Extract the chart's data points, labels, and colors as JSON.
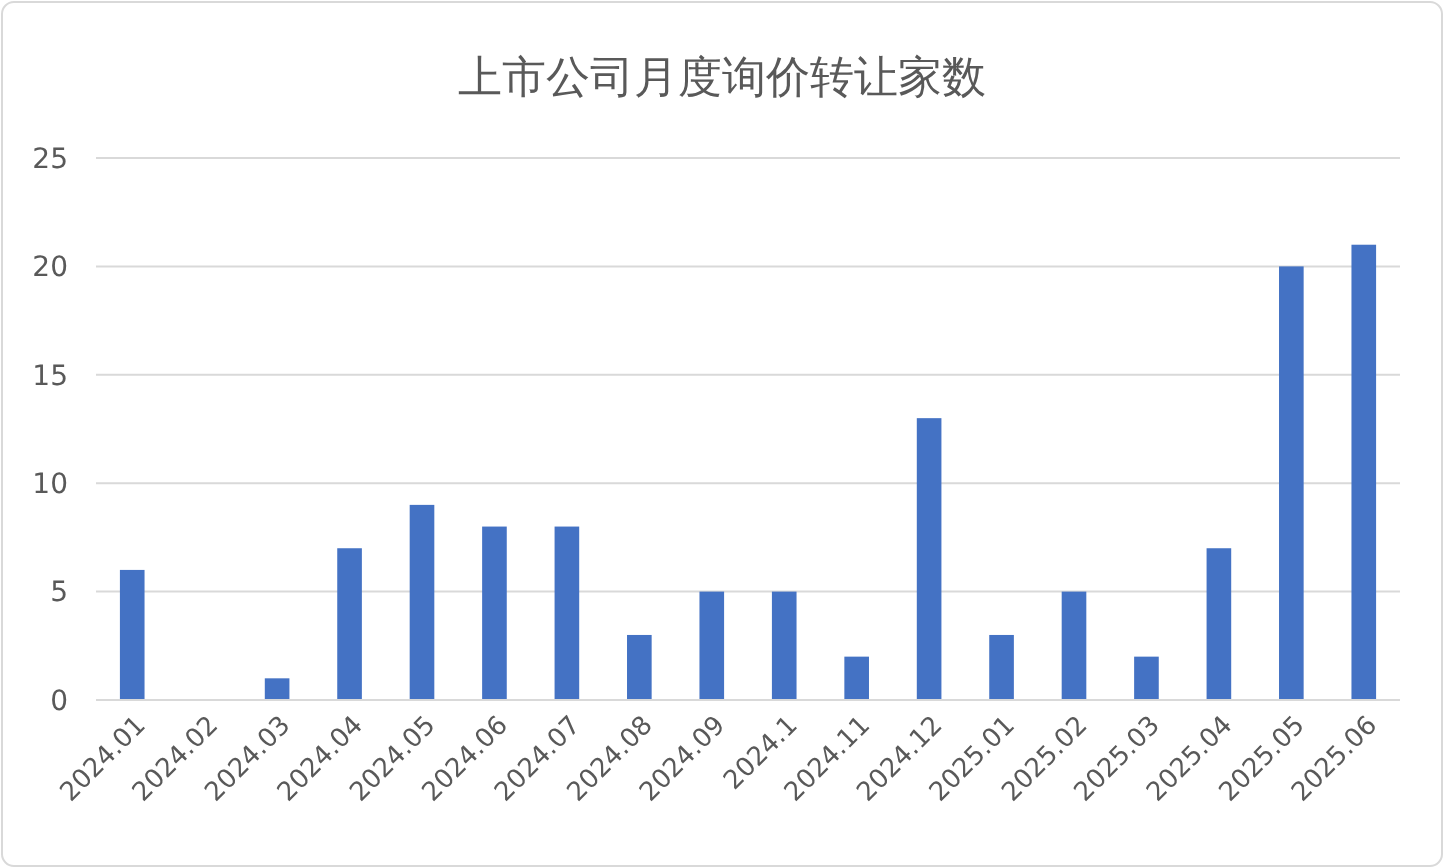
{
  "chart_data": {
    "type": "bar",
    "title": "上市公司月度询价转让家数",
    "categories": [
      "2024.01",
      "2024.02",
      "2024.03",
      "2024.04",
      "2024.05",
      "2024.06",
      "2024.07",
      "2024.08",
      "2024.09",
      "2024.1",
      "2024.11",
      "2024.12",
      "2025.01",
      "2025.02",
      "2025.03",
      "2025.04",
      "2025.05",
      "2025.06"
    ],
    "values": [
      6,
      0,
      1,
      7,
      9,
      8,
      8,
      3,
      5,
      5,
      2,
      13,
      3,
      5,
      2,
      7,
      20,
      21
    ],
    "color": "#4472c4",
    "ylim": [
      0,
      25
    ],
    "yticks": [
      0,
      5,
      10,
      15,
      20,
      25
    ],
    "grid": "y"
  }
}
